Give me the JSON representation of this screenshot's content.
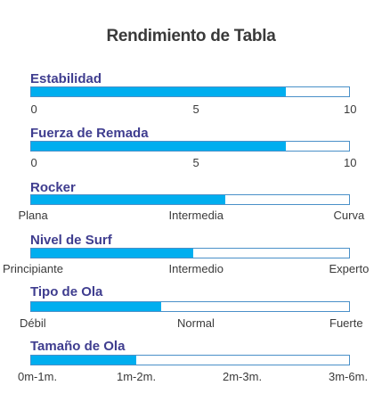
{
  "title": "Rendimiento de Tabla",
  "chart_data": [
    {
      "type": "bar",
      "label": "Estabilidad",
      "value": 8,
      "range": [
        0,
        10
      ],
      "ticks": [
        "0",
        "5",
        "10"
      ]
    },
    {
      "type": "bar",
      "label": "Fuerza de Remada",
      "value": 8,
      "range": [
        0,
        10
      ],
      "ticks": [
        "0",
        "5",
        "10"
      ]
    },
    {
      "type": "bar",
      "label": "Rocker",
      "value": 0.61,
      "range": [
        0,
        1
      ],
      "ticks": [
        "Plana",
        "Intermedia",
        "Curva"
      ]
    },
    {
      "type": "bar",
      "label": "Nivel de Surf",
      "value": 0.51,
      "range": [
        0,
        1
      ],
      "ticks": [
        "Principiante",
        "Intermedio",
        "Experto"
      ]
    },
    {
      "type": "bar",
      "label": "Tipo de Ola",
      "value": 0.41,
      "range": [
        0,
        1
      ],
      "ticks": [
        "Débil",
        "Normal",
        "Fuerte"
      ]
    },
    {
      "type": "bar",
      "label": "Tamaño de Ola",
      "value": 0.33,
      "range": [
        0,
        1
      ],
      "ticks": [
        "0m-1m.",
        "1m-2m.",
        "2m-3m.",
        "3m-6m."
      ]
    }
  ],
  "colors": {
    "fill": "#00aeef",
    "border": "#4a90c8",
    "label": "#3f3d8f",
    "text": "#3a3a3a"
  }
}
